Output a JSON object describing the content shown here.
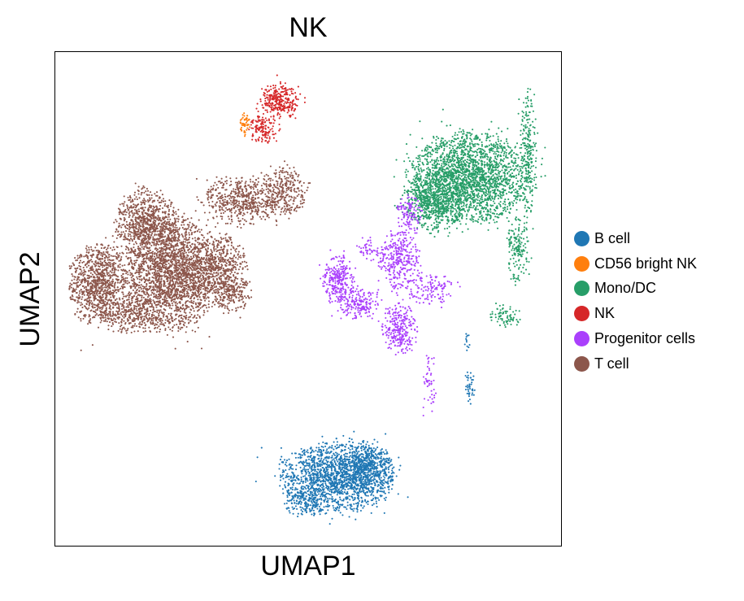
{
  "chart_data": {
    "type": "scatter",
    "title": "NK",
    "xlabel": "UMAP1",
    "ylabel": "UMAP2",
    "xlim": [
      0,
      100
    ],
    "ylim": [
      0,
      100
    ],
    "grid": false,
    "ticks": "hidden",
    "legend": {
      "placement": "right",
      "entries": [
        {
          "label": "B cell",
          "color": "#1f77b4"
        },
        {
          "label": "CD56 bright NK",
          "color": "#ff7f0e"
        },
        {
          "label": "Mono/DC",
          "color": "#279e68"
        },
        {
          "label": "NK",
          "color": "#d62728"
        },
        {
          "label": "Progenitor cells",
          "color": "#aa40fc"
        },
        {
          "label": "T cell",
          "color": "#8c564b"
        }
      ]
    },
    "series": [
      {
        "name": "T cell",
        "color": "#8c564b",
        "regions": [
          {
            "cx": 8.5,
            "cy": 53,
            "rx": 5.5,
            "ry": 8,
            "density": 1.0
          },
          {
            "cx": 23,
            "cy": 55,
            "rx": 9,
            "ry": 11,
            "density": 1.0
          },
          {
            "cx": 18,
            "cy": 65,
            "rx": 6,
            "ry": 7,
            "density": 0.9
          },
          {
            "cx": 32,
            "cy": 56,
            "rx": 6,
            "ry": 7,
            "density": 0.7
          },
          {
            "cx": 37,
            "cy": 70,
            "rx": 7,
            "ry": 5,
            "density": 0.7
          },
          {
            "cx": 45,
            "cy": 72,
            "rx": 4.5,
            "ry": 5,
            "density": 0.6
          },
          {
            "cx": 35,
            "cy": 51,
            "rx": 4,
            "ry": 3.5,
            "density": 0.5
          },
          {
            "cx": 15,
            "cy": 47,
            "rx": 6,
            "ry": 4,
            "density": 0.6
          }
        ]
      },
      {
        "name": "NK",
        "color": "#d62728",
        "regions": [
          {
            "cx": 44.5,
            "cy": 90,
            "rx": 3.8,
            "ry": 3.5,
            "density": 1.0
          },
          {
            "cx": 41,
            "cy": 84.5,
            "rx": 2.6,
            "ry": 3,
            "density": 0.8
          }
        ]
      },
      {
        "name": "CD56 bright NK",
        "color": "#ff7f0e",
        "regions": [
          {
            "cx": 37.5,
            "cy": 85.5,
            "rx": 1.0,
            "ry": 2.2,
            "density": 1.0
          }
        ]
      },
      {
        "name": "Mono/DC",
        "color": "#279e68",
        "regions": [
          {
            "cx": 82,
            "cy": 74.5,
            "rx": 11.5,
            "ry": 9,
            "density": 1.0
          },
          {
            "cx": 75,
            "cy": 70,
            "rx": 6,
            "ry": 6,
            "density": 0.8
          },
          {
            "cx": 93.5,
            "cy": 80,
            "rx": 1.6,
            "ry": 13,
            "density": 0.5
          },
          {
            "cx": 91.5,
            "cy": 60,
            "rx": 2.2,
            "ry": 6.5,
            "density": 0.5
          },
          {
            "cx": 89,
            "cy": 46.5,
            "rx": 3,
            "ry": 2.2,
            "density": 0.5
          }
        ]
      },
      {
        "name": "Progenitor cells",
        "color": "#aa40fc",
        "regions": [
          {
            "cx": 56,
            "cy": 54,
            "rx": 3,
            "ry": 5,
            "density": 0.8
          },
          {
            "cx": 68,
            "cy": 58,
            "rx": 4,
            "ry": 6,
            "density": 0.6
          },
          {
            "cx": 60,
            "cy": 49,
            "rx": 4,
            "ry": 3,
            "density": 0.7
          },
          {
            "cx": 68,
            "cy": 44,
            "rx": 3.5,
            "ry": 5,
            "density": 0.7
          },
          {
            "cx": 74,
            "cy": 52,
            "rx": 5,
            "ry": 3,
            "density": 0.4
          },
          {
            "cx": 70,
            "cy": 67,
            "rx": 2.5,
            "ry": 4,
            "density": 0.5
          },
          {
            "cx": 62,
            "cy": 60,
            "rx": 2.5,
            "ry": 2.2,
            "density": 0.4
          },
          {
            "cx": 74,
            "cy": 33,
            "rx": 1.2,
            "ry": 6,
            "density": 0.3
          }
        ]
      },
      {
        "name": "B cell",
        "color": "#1f77b4",
        "regions": [
          {
            "cx": 56,
            "cy": 14,
            "rx": 11,
            "ry": 7,
            "density": 1.0
          },
          {
            "cx": 62,
            "cy": 16,
            "rx": 4.5,
            "ry": 5,
            "density": 0.8
          },
          {
            "cx": 49.5,
            "cy": 9,
            "rx": 4.5,
            "ry": 3.2,
            "density": 0.6
          },
          {
            "cx": 82,
            "cy": 32,
            "rx": 0.9,
            "ry": 3.5,
            "density": 0.6
          },
          {
            "cx": 81.5,
            "cy": 41,
            "rx": 0.7,
            "ry": 2,
            "density": 0.4
          }
        ]
      }
    ]
  }
}
